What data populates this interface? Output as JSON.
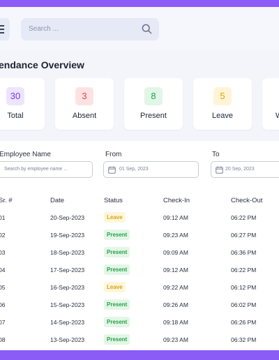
{
  "search": {
    "placeholder": "Search ..."
  },
  "overview": {
    "title": "endance Overview",
    "cards": [
      {
        "value": "30",
        "label": "Total",
        "bg": "#ede4fd",
        "color": "#7c3aed"
      },
      {
        "value": "3",
        "label": "Absent",
        "bg": "#fde2e4",
        "color": "#e5484d"
      },
      {
        "value": "8",
        "label": "Present",
        "bg": "#e1f6e6",
        "color": "#22a447"
      },
      {
        "value": "5",
        "label": "Leave",
        "bg": "#fff4d6",
        "color": "#e0a100"
      },
      {
        "value": "",
        "label": "W",
        "bg": "#ffffff",
        "color": "#1f2433"
      }
    ]
  },
  "filters": {
    "employee_label": "Employee Name",
    "employee_placeholder": "Search by employee name ...",
    "from_label": "From",
    "from_value": "01 Sep, 2023",
    "to_label": "To",
    "to_value": "20 Sep, 2023"
  },
  "table": {
    "headers": [
      "Sr. #",
      "Date",
      "Status",
      "Check-In",
      "Check-Out"
    ],
    "rows": [
      {
        "sr": "01",
        "date": "20-Sep-2023",
        "status": "Leave",
        "in": "09:12 AM",
        "out": "06:22 PM"
      },
      {
        "sr": "02",
        "date": "19-Sep-2023",
        "status": "Present",
        "in": "09:23 AM",
        "out": "06:27 PM"
      },
      {
        "sr": "03",
        "date": "18-Sep-2023",
        "status": "Present",
        "in": "09:09 AM",
        "out": "06:36 PM"
      },
      {
        "sr": "04",
        "date": "17-Sep-2023",
        "status": "Present",
        "in": "09:12 AM",
        "out": "06:22 PM"
      },
      {
        "sr": "05",
        "date": "16-Sep-2023",
        "status": "Leave",
        "in": "09:22 AM",
        "out": "06:12 PM"
      },
      {
        "sr": "06",
        "date": "15-Sep-2023",
        "status": "Present",
        "in": "09:26 AM",
        "out": "06:02 PM"
      },
      {
        "sr": "07",
        "date": "14-Sep-2023",
        "status": "Present",
        "in": "09:18 AM",
        "out": "06:26 PM"
      },
      {
        "sr": "08",
        "date": "13-Sep-2023",
        "status": "Present",
        "in": "09:23 AM",
        "out": "06:32 PM"
      }
    ]
  }
}
